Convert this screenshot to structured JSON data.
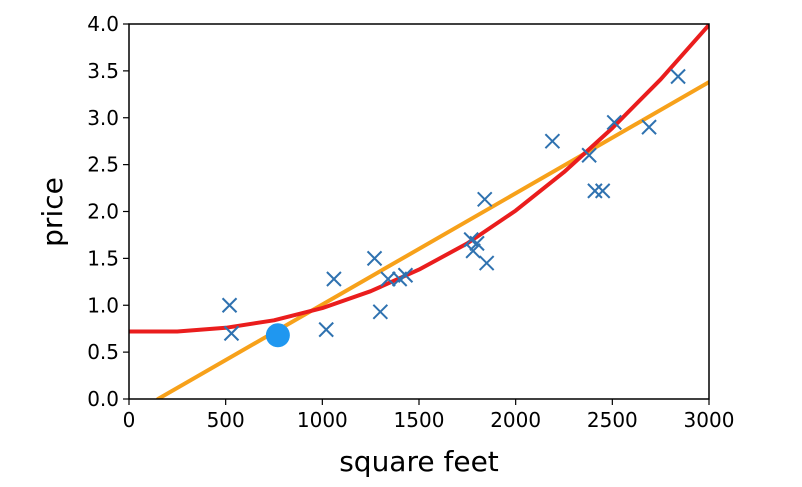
{
  "chart_data": {
    "type": "scatter",
    "xlabel": "square feet",
    "ylabel": "price",
    "xlim": [
      0,
      3000
    ],
    "ylim": [
      0,
      4.0
    ],
    "x_ticks": [
      0,
      500,
      1000,
      1500,
      2000,
      2500,
      3000
    ],
    "x_tick_labels": [
      "0",
      "500",
      "1000",
      "1500",
      "2000",
      "2500",
      "3000"
    ],
    "y_ticks": [
      0.0,
      0.5,
      1.0,
      1.5,
      2.0,
      2.5,
      3.0,
      3.5,
      4.0
    ],
    "y_tick_labels": [
      "0.0",
      "0.5",
      "1.0",
      "1.5",
      "2.0",
      "2.5",
      "3.0",
      "3.5",
      "4.0"
    ],
    "grid": false,
    "series": [
      {
        "kind": "scatter",
        "marker": "x",
        "color": "#2f72b0",
        "points": [
          [
            520,
            1.0
          ],
          [
            530,
            0.7
          ],
          [
            1020,
            0.74
          ],
          [
            1060,
            1.28
          ],
          [
            1270,
            1.5
          ],
          [
            1300,
            0.93
          ],
          [
            1340,
            1.28
          ],
          [
            1400,
            1.28
          ],
          [
            1430,
            1.32
          ],
          [
            1770,
            1.7
          ],
          [
            1780,
            1.58
          ],
          [
            1800,
            1.66
          ],
          [
            1840,
            2.13
          ],
          [
            1850,
            1.45
          ],
          [
            2190,
            2.75
          ],
          [
            2380,
            2.6
          ],
          [
            2410,
            2.22
          ],
          [
            2450,
            2.22
          ],
          [
            2510,
            2.95
          ],
          [
            2690,
            2.9
          ],
          [
            2840,
            3.44
          ]
        ]
      },
      {
        "kind": "point",
        "marker": "circle",
        "color": "#1f97f0",
        "points": [
          [
            770,
            0.68
          ]
        ]
      },
      {
        "kind": "line",
        "color": "#f7a11a",
        "points": [
          [
            150,
            0.0
          ],
          [
            3000,
            3.38
          ]
        ]
      },
      {
        "kind": "line",
        "color": "#ea1d1d",
        "points": [
          [
            0,
            0.72
          ],
          [
            250,
            0.72
          ],
          [
            500,
            0.76
          ],
          [
            750,
            0.84
          ],
          [
            1000,
            0.97
          ],
          [
            1250,
            1.15
          ],
          [
            1500,
            1.38
          ],
          [
            1750,
            1.66
          ],
          [
            2000,
            2.01
          ],
          [
            2250,
            2.42
          ],
          [
            2500,
            2.89
          ],
          [
            2750,
            3.41
          ],
          [
            3000,
            3.99
          ]
        ]
      }
    ]
  }
}
